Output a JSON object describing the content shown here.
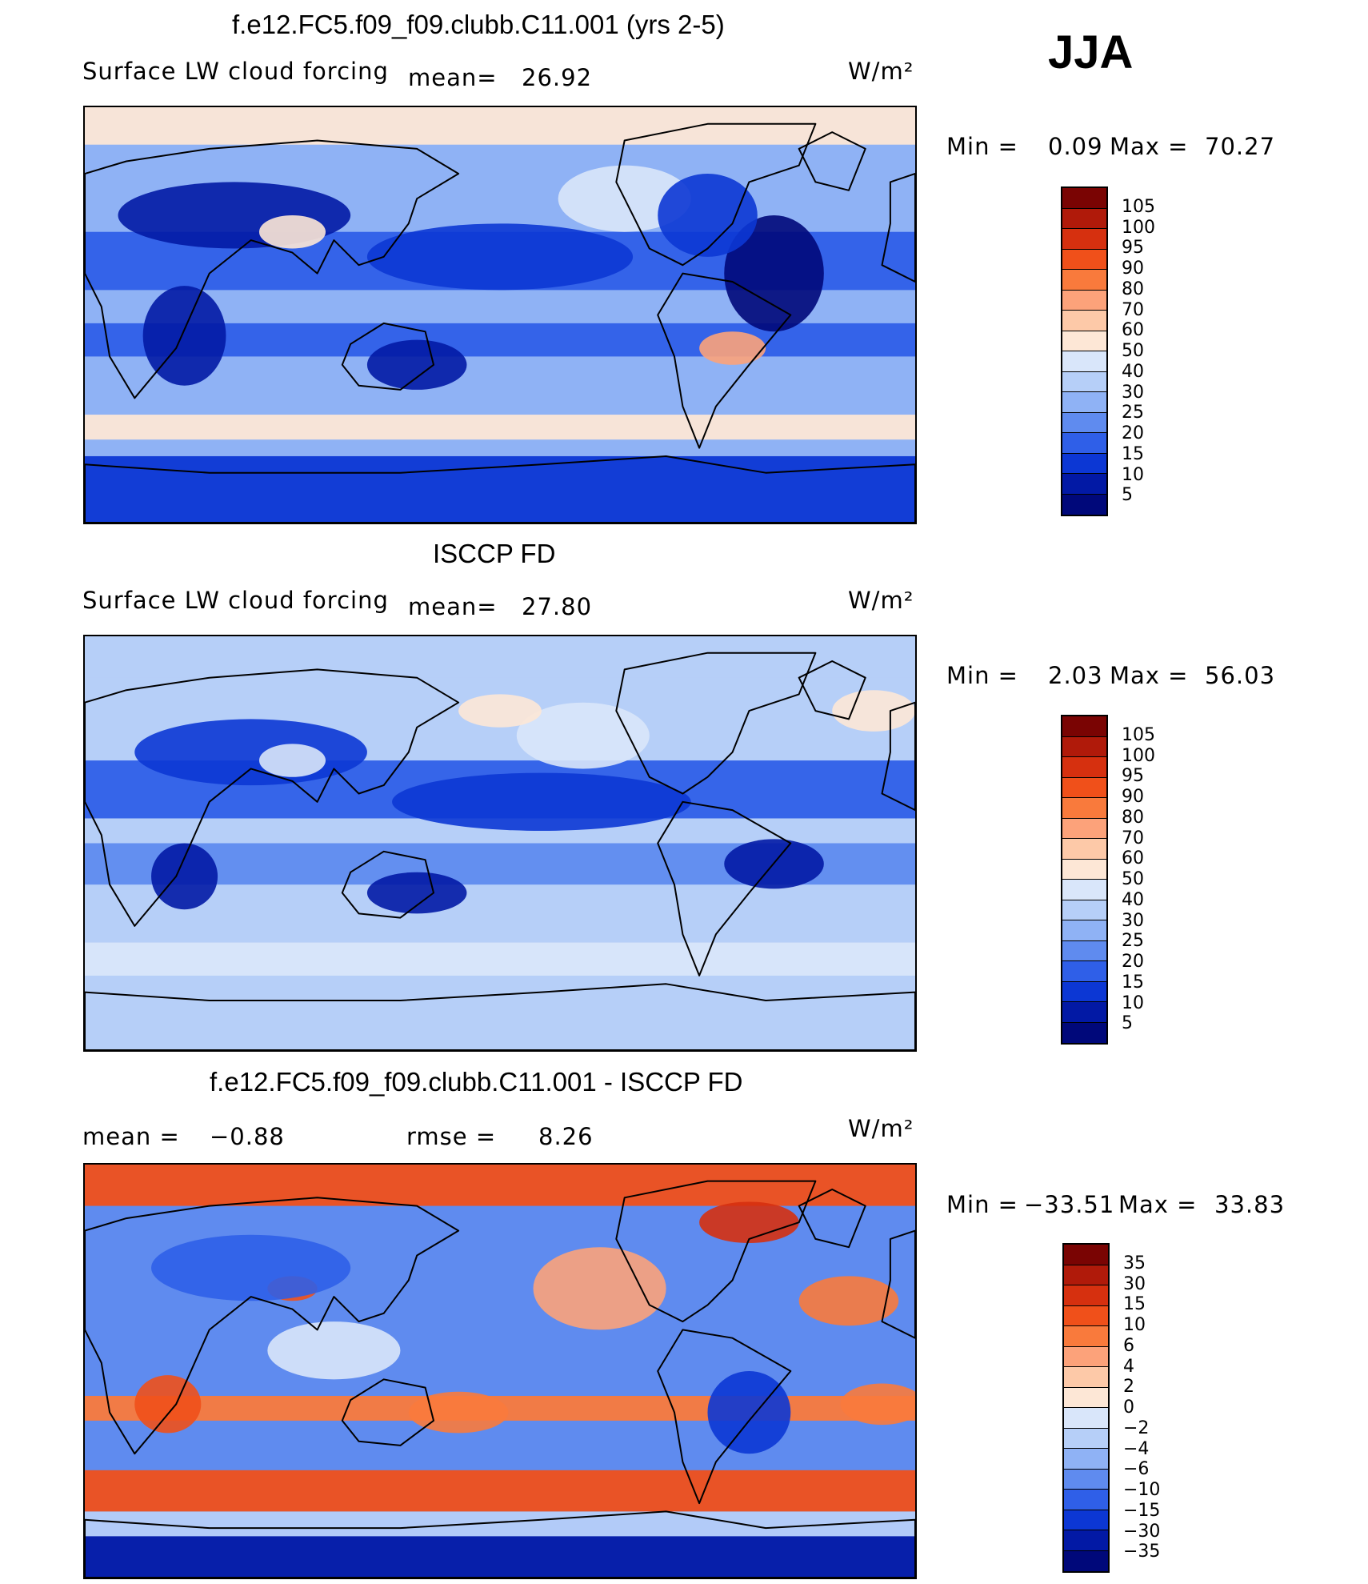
{
  "season": "JJA",
  "panels": [
    {
      "title": "f.e12.FC5.f09_f09.clubb.C11.001 (yrs 2-5)",
      "variable": "Surface LW cloud forcing",
      "mean_label": "mean=",
      "mean_value": "26.92",
      "units": "W/m²",
      "min_label": "Min  =",
      "min_value": "0.09",
      "max_label": "Max  =",
      "max_value": "70.27",
      "levels": [
        "105",
        "100",
        "95",
        "90",
        "80",
        "70",
        "60",
        "50",
        "40",
        "30",
        "25",
        "20",
        "15",
        "10",
        "5"
      ],
      "colors": [
        "#7a0403",
        "#b01a0a",
        "#d6300f",
        "#f0501a",
        "#f97a3c",
        "#fca27a",
        "#fdc9a8",
        "#fde7d6",
        "#d9e6fa",
        "#b6cff8",
        "#8fb2f5",
        "#5f8bef",
        "#2f5fe8",
        "#0c37d4",
        "#0219a5",
        "#00087a"
      ]
    },
    {
      "title": "ISCCP FD",
      "variable": "Surface LW cloud forcing",
      "mean_label": "mean=",
      "mean_value": "27.80",
      "units": "W/m²",
      "min_label": "Min  =",
      "min_value": "2.03",
      "max_label": "Max  =",
      "max_value": "56.03",
      "levels": [
        "105",
        "100",
        "95",
        "90",
        "80",
        "70",
        "60",
        "50",
        "40",
        "30",
        "25",
        "20",
        "15",
        "10",
        "5"
      ],
      "colors": [
        "#7a0403",
        "#b01a0a",
        "#d6300f",
        "#f0501a",
        "#f97a3c",
        "#fca27a",
        "#fdc9a8",
        "#fde7d6",
        "#d9e6fa",
        "#b6cff8",
        "#8fb2f5",
        "#5f8bef",
        "#2f5fe8",
        "#0c37d4",
        "#0219a5",
        "#00087a"
      ]
    },
    {
      "title": "f.e12.FC5.f09_f09.clubb.C11.001 - ISCCP FD",
      "mean_label": "mean  =",
      "mean_value": "−0.88",
      "rmse_label": "rmse  =",
      "rmse_value": "8.26",
      "units": "W/m²",
      "min_label": "Min  =",
      "min_value": "−33.51",
      "max_label": "Max  =",
      "max_value": "33.83",
      "levels": [
        "35",
        "30",
        "15",
        "10",
        "6",
        "4",
        "2",
        "0",
        "−2",
        "−4",
        "−6",
        "−10",
        "−15",
        "−30",
        "−35"
      ],
      "colors": [
        "#7a0403",
        "#b01a0a",
        "#d6300f",
        "#f0501a",
        "#f97a3c",
        "#fca27a",
        "#fdc9a8",
        "#fde7d6",
        "#d9e6fa",
        "#b6cff8",
        "#8fb2f5",
        "#5f8bef",
        "#2f5fe8",
        "#0c37d4",
        "#0219a5",
        "#00087a"
      ]
    }
  ],
  "chart_data": [
    {
      "type": "heatmap",
      "title": "f.e12.FC5.f09_f09.clubb.C11.001 (yrs 2-5)",
      "subtitle": "Surface LW cloud forcing",
      "season": "JJA",
      "units": "W/m2",
      "mean": 26.92,
      "min": 0.09,
      "max": 70.27,
      "contour_levels": [
        5,
        10,
        15,
        20,
        25,
        30,
        40,
        50,
        60,
        70,
        80,
        90,
        95,
        100,
        105
      ]
    },
    {
      "type": "heatmap",
      "title": "ISCCP FD",
      "subtitle": "Surface LW cloud forcing",
      "season": "JJA",
      "units": "W/m2",
      "mean": 27.8,
      "min": 2.03,
      "max": 56.03,
      "contour_levels": [
        5,
        10,
        15,
        20,
        25,
        30,
        40,
        50,
        60,
        70,
        80,
        90,
        95,
        100,
        105
      ]
    },
    {
      "type": "heatmap",
      "title": "f.e12.FC5.f09_f09.clubb.C11.001 - ISCCP FD",
      "season": "JJA",
      "units": "W/m2",
      "mean": -0.88,
      "rmse": 8.26,
      "min": -33.51,
      "max": 33.83,
      "contour_levels": [
        -35,
        -30,
        -15,
        -10,
        -6,
        -4,
        -2,
        0,
        2,
        4,
        6,
        10,
        15,
        30,
        35
      ]
    }
  ]
}
